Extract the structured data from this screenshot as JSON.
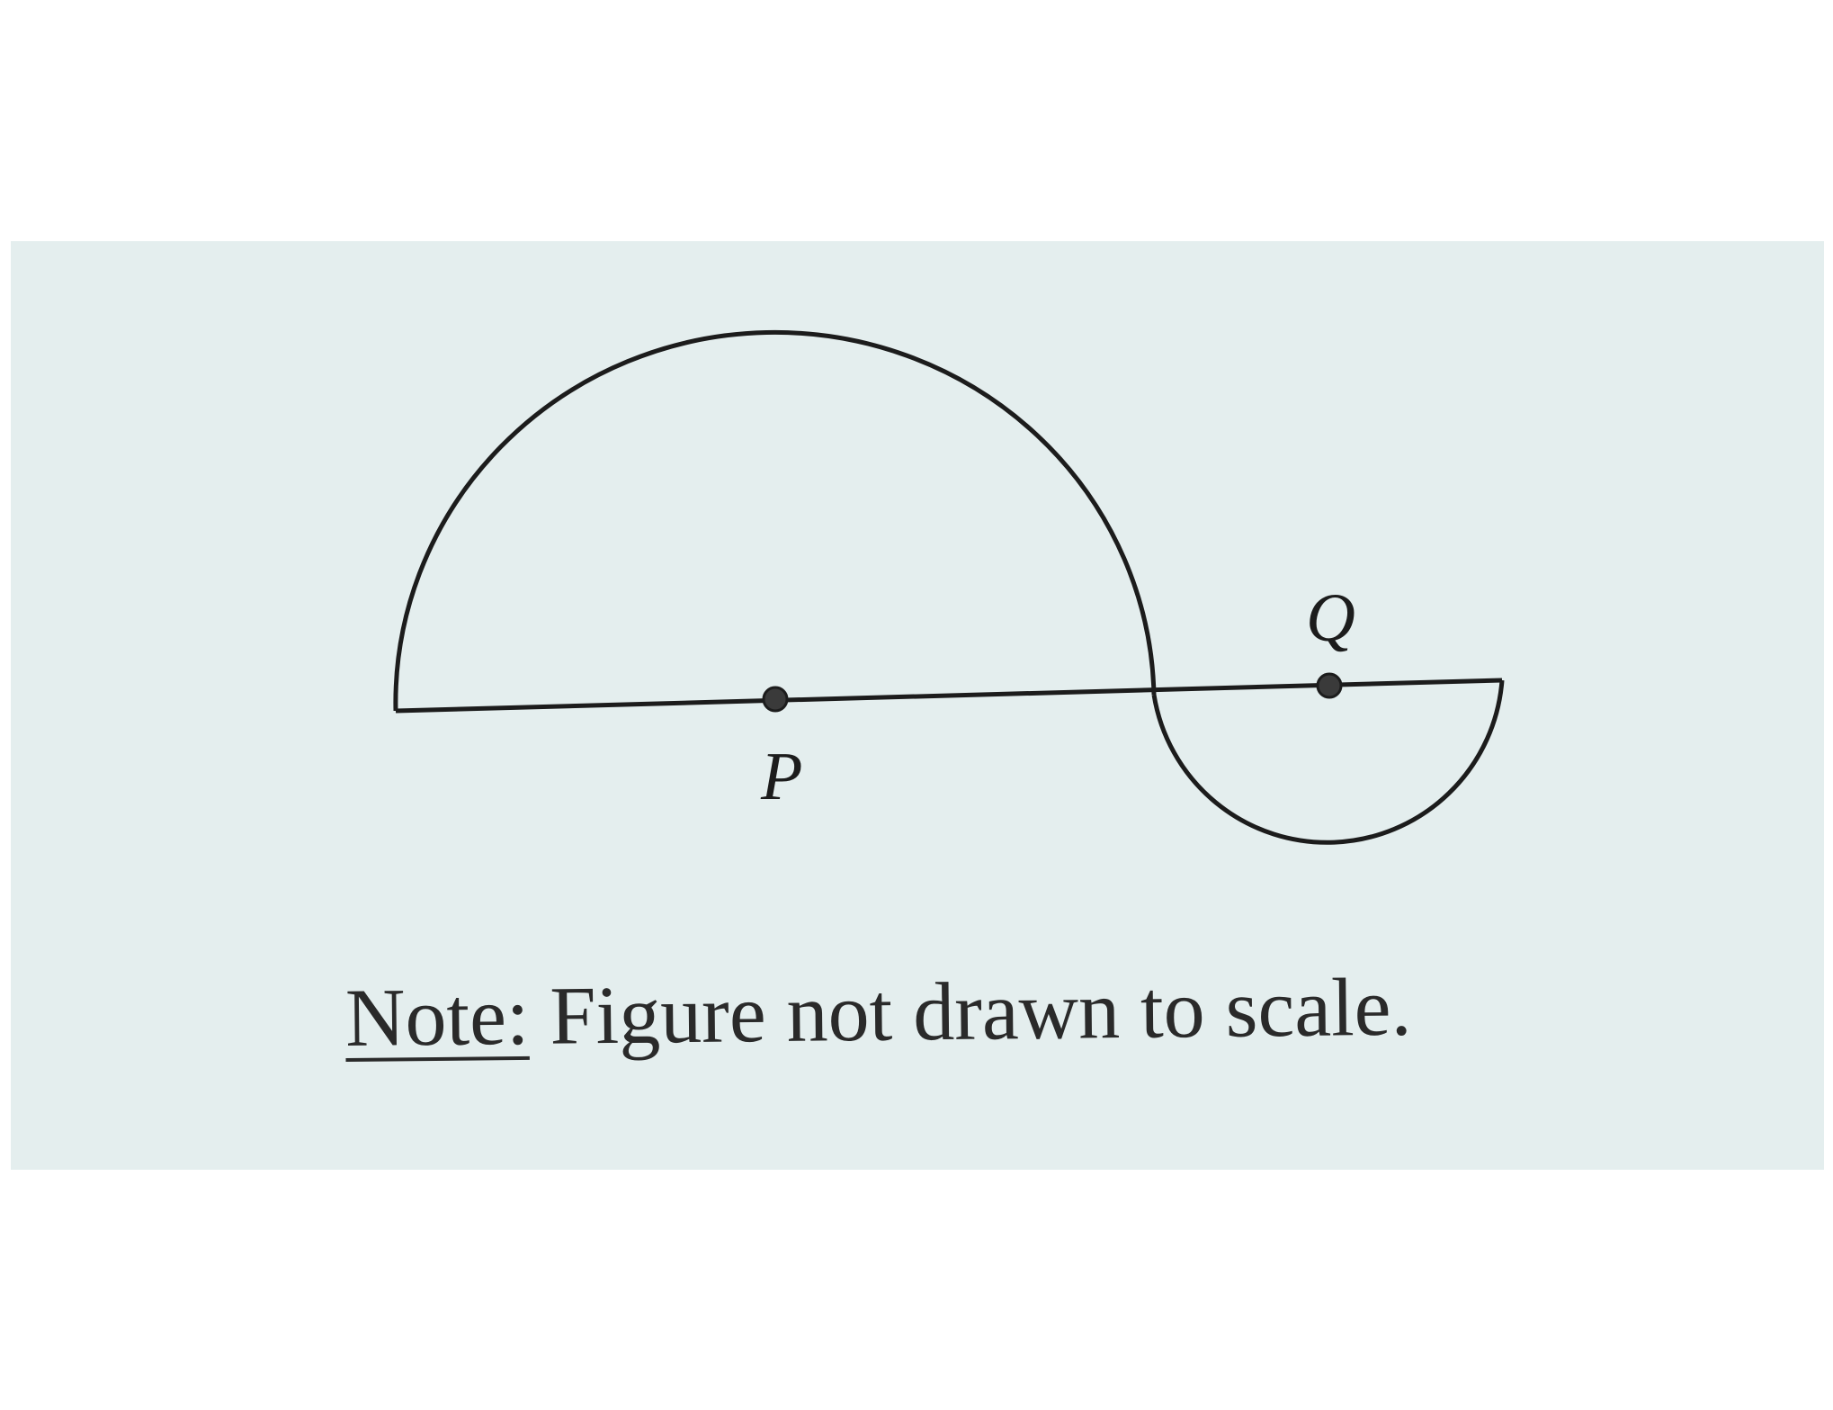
{
  "figure": {
    "points": {
      "p": {
        "label": "P"
      },
      "q": {
        "label": "Q"
      }
    },
    "note": {
      "label": "Note:",
      "text": " Figure not drawn to scale."
    }
  },
  "colors": {
    "background": "#e4eeee",
    "ink": "#1c1c1c"
  }
}
